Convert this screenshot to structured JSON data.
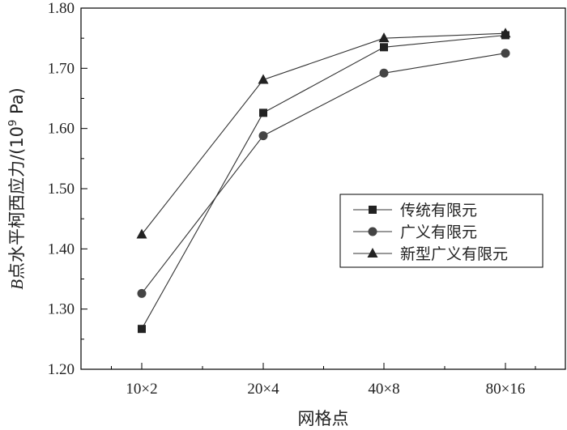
{
  "chart_data": {
    "type": "line",
    "categories": [
      "10×2",
      "20×4",
      "40×8",
      "80×16"
    ],
    "xlabel": "网格点",
    "ylabel_prefix": "B",
    "ylabel_main": "点水平柯西应力/(10",
    "ylabel_exp": "9",
    "ylabel_suffix": " Pa)",
    "ylim": [
      1.2,
      1.8
    ],
    "yticks": [
      "1.20",
      "1.30",
      "1.40",
      "1.50",
      "1.60",
      "1.70",
      "1.80"
    ],
    "grid": false,
    "legend_position": "right-middle",
    "series": [
      {
        "name": "传统有限元",
        "marker": "square",
        "values": [
          1.267,
          1.626,
          1.735,
          1.755
        ]
      },
      {
        "name": "广义有限元",
        "marker": "circle",
        "values": [
          1.326,
          1.588,
          1.692,
          1.725
        ]
      },
      {
        "name": "新型广义有限元",
        "marker": "triangle",
        "values": [
          1.424,
          1.681,
          1.75,
          1.758
        ]
      }
    ],
    "colors": {
      "line": "#333333",
      "marker": "#222222",
      "axis": "#000000"
    }
  }
}
